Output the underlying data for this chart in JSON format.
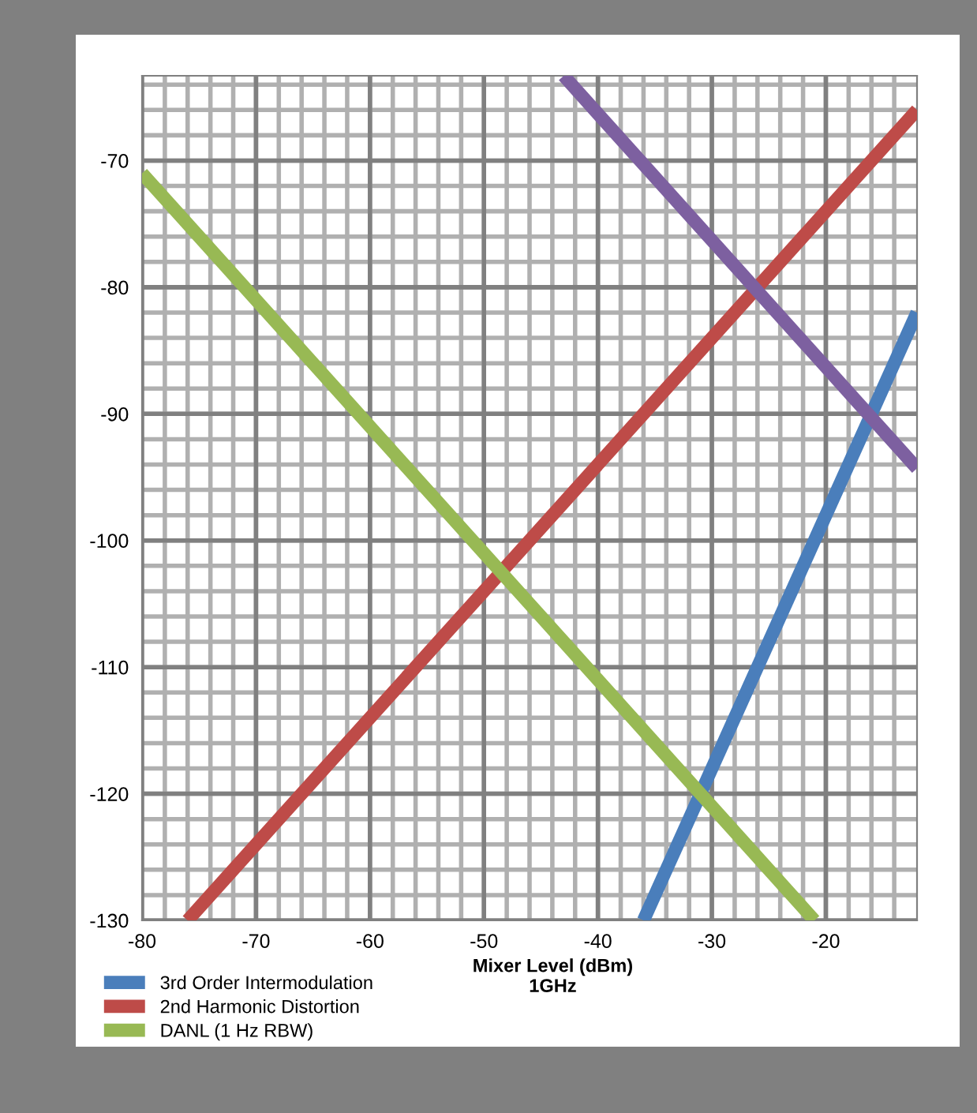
{
  "chart_data": {
    "type": "line",
    "xlabel": "Mixer Level (dBm)\n1GHz",
    "series": [
      {
        "name": "3rd Order Intermodulation",
        "color": "#4a7ebb",
        "x": [
          -36,
          -12
        ],
        "values": [
          -130,
          -82
        ]
      },
      {
        "name": "2nd Harmonic Distortion",
        "color": "#be4b48",
        "x": [
          -76,
          -12
        ],
        "values": [
          -130,
          -66
        ]
      },
      {
        "name": "DANL (1 Hz RBW)",
        "color": "#98b954",
        "x": [
          -80,
          -21
        ],
        "values": [
          -71,
          -130
        ]
      },
      {
        "color": "#7d60a0",
        "x": [
          -43,
          -12
        ],
        "values": [
          -63.3,
          -94.3
        ]
      }
    ],
    "xlim": [
      -80,
      -12
    ],
    "ylim": [
      -130,
      -63.3
    ],
    "xticks": [
      -80,
      -70,
      -60,
      -50,
      -40,
      -30,
      -20
    ],
    "yticks": [
      -70,
      -80,
      -90,
      -100,
      -110,
      -120,
      -130
    ],
    "grid": true,
    "legend": "bottom left",
    "marker": "none",
    "line_style": "solid"
  }
}
